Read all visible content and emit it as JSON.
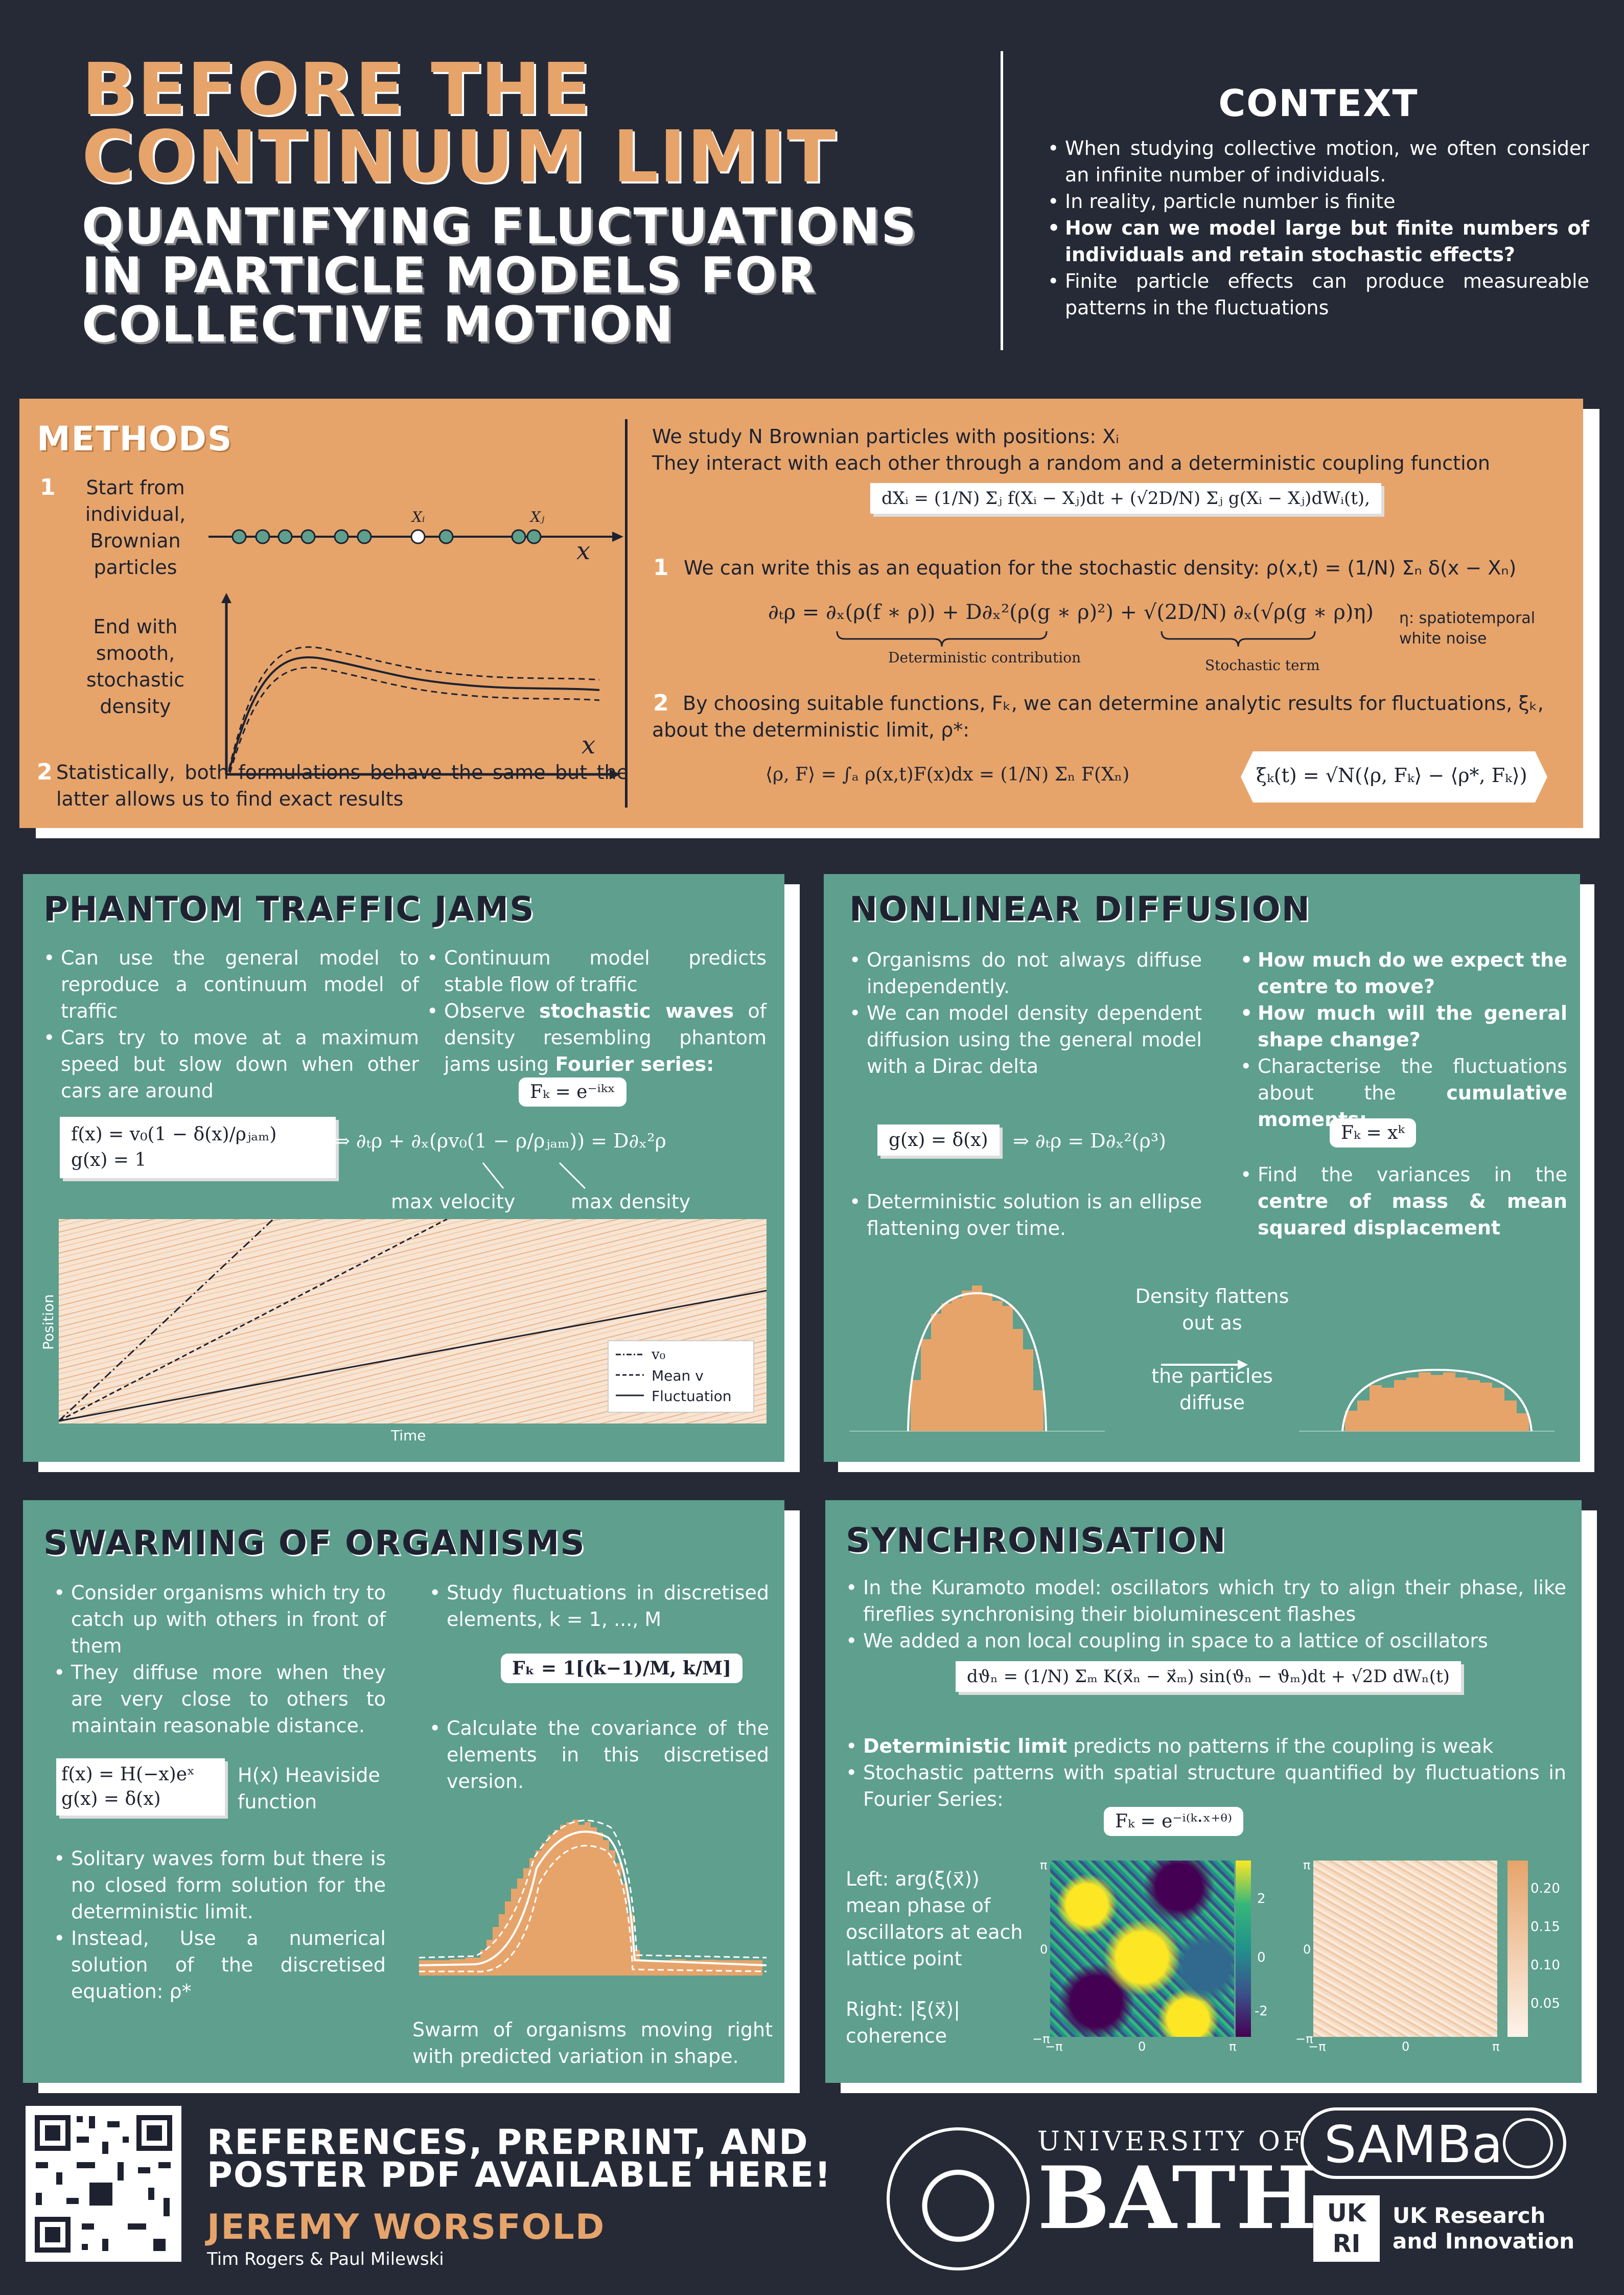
{
  "header": {
    "title_line1": "BEFORE THE",
    "title_line2": "CONTINUUM LIMIT",
    "subtitle_line1": "QUANTIFYING FLUCTUATIONS",
    "subtitle_line2": "IN PARTICLE MODELS FOR",
    "subtitle_line3": "COLLECTIVE MOTION"
  },
  "context": {
    "heading": "CONTEXT",
    "bullets": [
      "When studying collective motion, we often consider an infinite number of individuals.",
      "In reality, particle number is finite",
      "How can we model large but finite numbers of individuals and retain stochastic effects?",
      "Finite particle effects can produce measureable patterns in the fluctuations"
    ]
  },
  "methods": {
    "heading": "METHODS",
    "step1_num": "1",
    "step1_text": "Start from individual, Brownian particles",
    "end_text": "End with smooth, stochastic density",
    "step2_num": "2",
    "step2_text": "Statistically, both formulations behave the same but the latter allows us to find exact results",
    "study_line1": "We study N Brownian particles with positions: Xᵢ",
    "study_line2": "They interact with each other through a random and a deterministic coupling function",
    "eq_sde": "dXᵢ = (1/N) Σⱼ f(Xᵢ − Xⱼ)dt + (√2D/N) Σⱼ g(Xᵢ − Xⱼ)dWᵢ(t),",
    "point1_num": "1",
    "point1_text": "We can write this as an equation for the stochastic density: ρ(x,t) = (1/N) Σₙ δ(x − Xₙ)",
    "eq_density": "∂ₜρ = ∂ₓ(ρ(f ∗ ρ)) + D∂ₓ²(ρ(g ∗ ρ)²) + √(2D/N) ∂ₓ(√ρ(g ∗ ρ)η)",
    "det_label": "Deterministic contribution",
    "stoch_label": "Stochastic term",
    "eta_note": "η: spatiotemporal white noise",
    "point2_num": "2",
    "point2_text": "By choosing suitable functions, Fₖ, we can determine analytic results for fluctuations, ξₖ, about the deterministic limit, ρ*:",
    "eq_inner": "⟨ρ, F⟩ = ∫ₐ ρ(x,t)F(x)dx = (1/N) Σₙ F(Xₙ)",
    "eq_xi": "ξₖ(t) = √N(⟨ρ, Fₖ⟩ − ⟨ρ*, Fₖ⟩)",
    "axis_x": "x",
    "label_xi": "Xᵢ",
    "label_xj": "Xⱼ"
  },
  "traffic": {
    "heading": "PHANTOM TRAFFIC JAMS",
    "left_bullets": [
      "Can use the general model to reproduce a continuum model of traffic",
      "Cars try to move at a maximum speed but slow down when other cars are around"
    ],
    "right_b1": "Continuum model predicts stable flow of traffic",
    "right_b2_pre": "Observe ",
    "right_b2_bold": "stochastic waves",
    "right_b2_mid": " of density resembling phantom jams using ",
    "right_b2_bold2": "Fourier series:",
    "eq_fk": "Fₖ = e⁻ⁱᵏˣ",
    "eq_fg_1": "f(x) = v₀(1 − δ(x)/ρⱼₐₘ)",
    "eq_fg_2": "g(x) = 1",
    "eq_pde": "⇒  ∂ₜρ + ∂ₓ(ρv₀(1 − ρ/ρⱼₐₘ)) = D∂ₓ²ρ",
    "label_maxvel": "max velocity",
    "label_maxden": "max density",
    "axis_y": "Position",
    "axis_x": "Time",
    "legend": [
      "v₀",
      "Mean v",
      "Fluctuation"
    ]
  },
  "nonlinear": {
    "heading": "NONLINEAR DIFFUSION",
    "left_bullets": [
      "Organisms do not always diffuse independently.",
      "We can model density dependent diffusion using the general model with a Dirac delta"
    ],
    "right_q1": "How much do we expect the centre to move?",
    "right_q2": "How much will the general shape change?",
    "right_b3_pre": "Characterise the fluctuations about the ",
    "right_b3_bold": "cumulative moments:",
    "eq_fk": "Fₖ = xᵏ",
    "eq_g": "g(x) = δ(x)",
    "eq_pde": "⇒  ∂ₜρ = D∂ₓ²(ρ³)",
    "det_bullet": "Deterministic solution is an ellipse flattening over time.",
    "var_pre": "Find the variances in the ",
    "var_bold": "centre of mass & mean squared displacement",
    "flat_line1": "Density flattens",
    "flat_line2": "out as",
    "flat_line3": "the particles",
    "flat_line4": "diffuse"
  },
  "swarm": {
    "heading": "SWARMING OF ORGANISMS",
    "left_bullets": [
      "Consider organisms which try to catch up with others in front of them",
      "They diffuse more when they are very close to others to maintain reasonable distance."
    ],
    "eq_fg_1": "f(x) = H(−x)eˣ",
    "eq_fg_2": "g(x) = δ(x)",
    "heaviside": "H(x) Heaviside function",
    "lower_bullets": [
      "Solitary waves form but there is no closed form solution for the deterministic limit.",
      "Instead, Use a numerical solution of the discretised equation: ρ*"
    ],
    "right_b1": "Study fluctuations in discretised elements, k = 1, ..., M",
    "eq_fk": "Fₖ = 1[(k−1)/M, k/M]",
    "right_b2": "Calculate the covariance of the elements in this discretised version.",
    "caption": "Swarm of organisms moving right with predicted variation in shape."
  },
  "sync": {
    "heading": "SYNCHRONISATION",
    "bullets": [
      "In the Kuramoto model: oscillators which try to align their phase, like fireflies synchronising their bioluminescent flashes",
      "We added a non local coupling in space to a lattice of oscillators"
    ],
    "eq_kuramoto": "dϑₙ = (1/N) Σₘ K(x⃗ₙ − x⃗ₘ) sin(ϑₙ − ϑₘ)dt + √2D dWₙ(t)",
    "det_bold": "Deterministic limit",
    "det_rest": " predicts no patterns if the coupling is weak",
    "stoch": "Stochastic patterns with spatial structure quantified by fluctuations in Fourier Series:",
    "eq_fk": "Fₖ = e⁻ⁱ⁽ᵏ·ˣ⁺ᶿ⁾",
    "left_note": "Left: arg(ξ(x⃗)) mean phase of oscillators at each lattice point",
    "right_note": "Right: |ξ(x⃗)| coherence",
    "cbar1": [
      "2",
      "0",
      "-2"
    ],
    "cbar2": [
      "0.20",
      "0.15",
      "0.10",
      "0.05"
    ],
    "ax_pi": "π",
    "ax_zero": "0",
    "ax_mpi": "−π"
  },
  "footer": {
    "refs_line1": "REFERENCES, PREPRINT, AND",
    "refs_line2": "POSTER PDF AVAILABLE HERE!",
    "author": "JEREMY WORSFOLD",
    "coauthors": "Tim Rogers & Paul Milewski",
    "bath_line1": "UNIVERSITY OF",
    "bath_line2": "BATH",
    "samba": "SAMBa",
    "ukri_line1": "UK Research",
    "ukri_line2": "and Innovation",
    "ukri_logo": "UKRI"
  },
  "colors": {
    "background": "#262a36",
    "orange": "#e6a46b",
    "teal": "#5e9f8e",
    "dark_text": "#1e2230"
  }
}
